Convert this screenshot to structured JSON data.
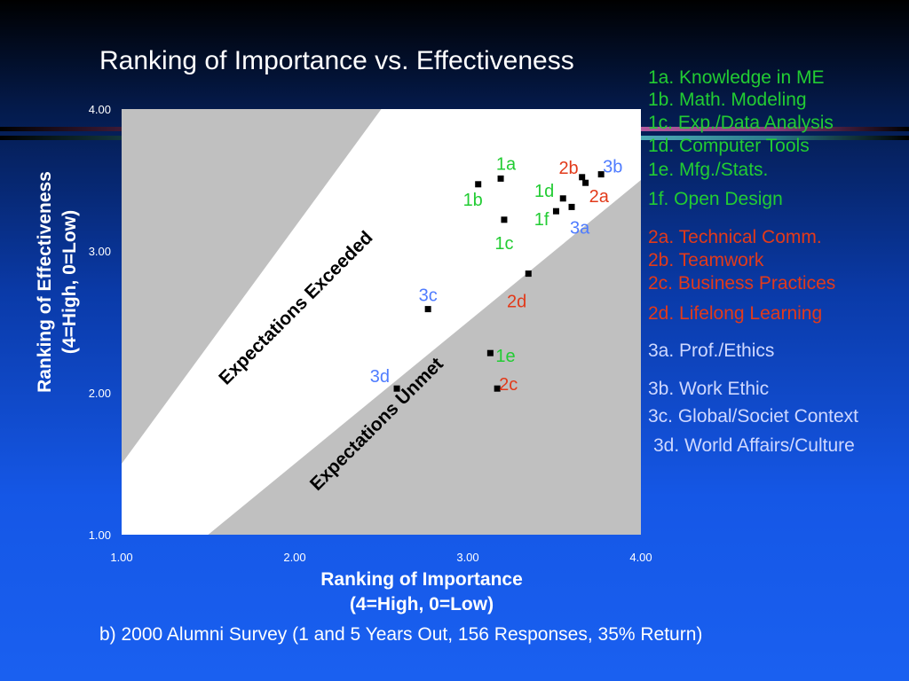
{
  "chart_data": {
    "type": "scatter",
    "title": "Ranking of Importance vs. Effectiveness",
    "xlabel_line1": "Ranking of Importance",
    "xlabel_line2": "(4=High, 0=Low)",
    "ylabel_line1": "Ranking of Effectiveness",
    "ylabel_line2": "(4=High, 0=Low)",
    "xlim": [
      1,
      4
    ],
    "ylim": [
      1,
      4
    ],
    "x_ticks": [
      "1.00",
      "2.00",
      "3.00",
      "4.00"
    ],
    "y_ticks": [
      "1.00",
      "2.00",
      "3.00",
      "4.00"
    ],
    "band_annotations": [
      "Expectations Exceeded",
      "Expectations Unmet"
    ],
    "points": [
      {
        "label": "1a",
        "x": 3.19,
        "y": 3.51,
        "color": "#22cc33"
      },
      {
        "label": "1b",
        "x": 3.06,
        "y": 3.47,
        "color": "#22cc33"
      },
      {
        "label": "1c",
        "x": 3.21,
        "y": 3.22,
        "color": "#22cc33"
      },
      {
        "label": "1d",
        "x": 3.55,
        "y": 3.37,
        "color": "#22cc33"
      },
      {
        "label": "1e",
        "x": 3.13,
        "y": 2.28,
        "color": "#22cc33"
      },
      {
        "label": "1f",
        "x": 3.51,
        "y": 3.28,
        "color": "#22cc33"
      },
      {
        "label": "2a",
        "x": 3.68,
        "y": 3.48,
        "color": "#e23a1a"
      },
      {
        "label": "2b",
        "x": 3.66,
        "y": 3.52,
        "color": "#e23a1a"
      },
      {
        "label": "2c",
        "x": 3.17,
        "y": 2.03,
        "color": "#e23a1a"
      },
      {
        "label": "2d",
        "x": 3.35,
        "y": 2.84,
        "color": "#e23a1a"
      },
      {
        "label": "3a",
        "x": 3.6,
        "y": 3.31,
        "color": "#4f7cff"
      },
      {
        "label": "3b",
        "x": 3.77,
        "y": 3.54,
        "color": "#4f7cff"
      },
      {
        "label": "3c",
        "x": 2.77,
        "y": 2.59,
        "color": "#4f7cff"
      },
      {
        "label": "3d",
        "x": 2.59,
        "y": 2.03,
        "color": "#4f7cff"
      }
    ]
  },
  "legend": {
    "1a": "1a. Knowledge in ME",
    "1b": "1b. Math. Modeling",
    "1c": "1c. Exp./Data Analysis",
    "1d": "1d. Computer Tools",
    "1e": "1e. Mfg./Stats.",
    "1f": "1f.  Open Design",
    "2a": "2a. Technical Comm.",
    "2b": "2b. Teamwork",
    "2c": "2c. Business Practices",
    "2d": "2d. Lifelong Learning",
    "3a": "3a. Prof./Ethics",
    "3b": "3b. Work Ethic",
    "3c": "3c. Global/Societ Context",
    "3d": "3d. World Affairs/Culture"
  },
  "caption": "b) 2000 Alumni Survey (1 and 5 Years Out, 156 Responses, 35% Return)",
  "colors": {
    "group1": "#22cc33",
    "group2": "#e23a1a",
    "group3_points": "#4f7cff",
    "group3_legend": "#cfd8ff",
    "plot_bg": "#c0c0c0",
    "band": "#ffffff"
  }
}
